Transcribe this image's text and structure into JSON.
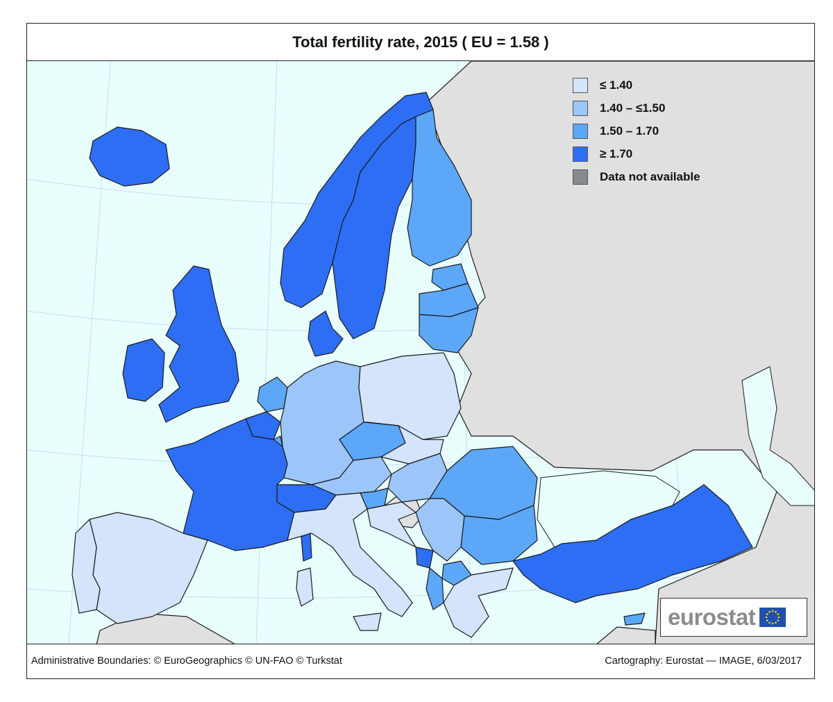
{
  "title": "Total fertility rate, 2015 ( EU = 1.58 )",
  "legend": {
    "items": [
      {
        "label": "≤ 1.40",
        "color": "#d3e4fb"
      },
      {
        "label": "1.40 – ≤1.50",
        "color": "#9cc5fa"
      },
      {
        "label": "1.50 – 1.70",
        "color": "#5da7f8"
      },
      {
        "label": "≥ 1.70",
        "color": "#2e6ef5"
      },
      {
        "label": "Data not available",
        "color": "#878a8f"
      }
    ]
  },
  "colors": {
    "sea": "#e8fffe",
    "non_member_land": "#e0e0e0",
    "border": "#1a1a1a",
    "graticule": "#c5dde8"
  },
  "logo": {
    "text": "eurostat",
    "icon": "eu-flag-icon"
  },
  "footer": {
    "left": "Administrative Boundaries: © EuroGeographics © UN-FAO © Turkstat",
    "right": "Cartography: Eurostat — IMAGE, 6/03/2017"
  }
}
